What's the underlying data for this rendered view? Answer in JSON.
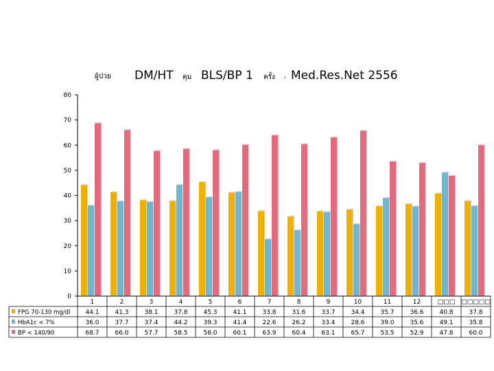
{
  "title": {
    "part1": "ผู้ป่วย",
    "part2": "DM/HT",
    "part3": "คุม",
    "part4": "BLS/BP 1",
    "part5": "ครั้ง",
    "part6": ",",
    "part7": "Med.Res.Net 2556"
  },
  "chart_data": {
    "type": "bar",
    "categories": [
      "1",
      "2",
      "3",
      "4",
      "5",
      "6",
      "7",
      "8",
      "9",
      "10",
      "11",
      "12",
      "□□□",
      "□□□□□"
    ],
    "series": [
      {
        "name": "FPG 70-130 mg/dl",
        "color": "#F0B000",
        "values": [
          44.1,
          41.3,
          38.1,
          37.8,
          45.3,
          41.1,
          33.8,
          31.6,
          33.7,
          34.4,
          35.7,
          36.6,
          40.8,
          37.8
        ]
      },
      {
        "name": "HbA1c < 7%",
        "color": "#6FB6CF",
        "values": [
          36.0,
          37.7,
          37.4,
          44.2,
          39.3,
          41.4,
          22.6,
          26.2,
          33.4,
          28.6,
          39.0,
          35.6,
          49.1,
          35.8
        ]
      },
      {
        "name": "BP < 140/90",
        "color": "#E46B7E",
        "values": [
          68.7,
          66.0,
          57.7,
          58.5,
          58.0,
          60.1,
          63.9,
          60.4,
          63.1,
          65.7,
          53.5,
          52.9,
          47.8,
          60.0
        ]
      }
    ],
    "ylim": [
      0,
      80
    ],
    "yticks": [
      0,
      10,
      20,
      30,
      40,
      50,
      60,
      70,
      80
    ],
    "grid": false,
    "legend": "table-below"
  }
}
